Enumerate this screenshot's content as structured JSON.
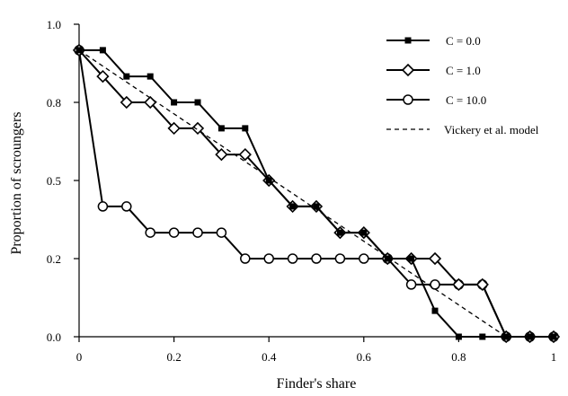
{
  "chart_data": {
    "type": "line",
    "xlabel": "Finder's share",
    "ylabel": "Proportion of scroungers",
    "xlim": [
      0,
      1
    ],
    "ylim": [
      0,
      1
    ],
    "x_ticks": [
      "0",
      "0.2",
      "0.4",
      "0.6",
      "0.8",
      "1"
    ],
    "y_ticks": [
      "0.0",
      "0.2",
      "0.5",
      "0.8",
      "1.0"
    ],
    "y_tick_values": [
      0,
      0.25,
      0.5,
      0.75,
      1.0
    ],
    "legend_position": "top-right",
    "series": [
      {
        "name": "C = 0.0",
        "marker": "square-filled",
        "style": "solid",
        "x": [
          0,
          0.05,
          0.1,
          0.15,
          0.2,
          0.25,
          0.3,
          0.35,
          0.4,
          0.45,
          0.5,
          0.55,
          0.6,
          0.65,
          0.7,
          0.75,
          0.8,
          0.85,
          0.9,
          0.95,
          1.0
        ],
        "y": [
          0.917,
          0.917,
          0.833,
          0.833,
          0.75,
          0.75,
          0.667,
          0.667,
          0.5,
          0.417,
          0.417,
          0.333,
          0.333,
          0.25,
          0.25,
          0.083,
          0.0,
          0.0,
          0.0,
          0.0,
          0.0
        ]
      },
      {
        "name": "C = 1.0",
        "marker": "diamond-open",
        "style": "solid",
        "x": [
          0,
          0.05,
          0.1,
          0.15,
          0.2,
          0.25,
          0.3,
          0.35,
          0.4,
          0.45,
          0.5,
          0.55,
          0.6,
          0.65,
          0.7,
          0.75,
          0.8,
          0.85,
          0.9,
          0.95,
          1.0
        ],
        "y": [
          0.917,
          0.833,
          0.75,
          0.75,
          0.667,
          0.667,
          0.583,
          0.583,
          0.5,
          0.417,
          0.417,
          0.333,
          0.333,
          0.25,
          0.25,
          0.25,
          0.167,
          0.167,
          0.0,
          0.0,
          0.0
        ]
      },
      {
        "name": "C = 10.0",
        "marker": "circle-open",
        "style": "solid",
        "x": [
          0,
          0.05,
          0.1,
          0.15,
          0.2,
          0.25,
          0.3,
          0.35,
          0.4,
          0.45,
          0.5,
          0.55,
          0.6,
          0.65,
          0.7,
          0.75,
          0.8,
          0.85,
          0.9,
          0.95,
          1.0
        ],
        "y": [
          0.917,
          0.417,
          0.417,
          0.333,
          0.333,
          0.333,
          0.333,
          0.25,
          0.25,
          0.25,
          0.25,
          0.25,
          0.25,
          0.25,
          0.167,
          0.167,
          0.167,
          0.167,
          0.0,
          0.0,
          0.0
        ]
      },
      {
        "name": "Vickery et al. model",
        "marker": "none",
        "style": "dashed",
        "x": [
          0,
          0.9
        ],
        "y": [
          0.917,
          0.0
        ]
      }
    ]
  },
  "colors": {
    "ink": "#000000",
    "background": "#ffffff"
  }
}
